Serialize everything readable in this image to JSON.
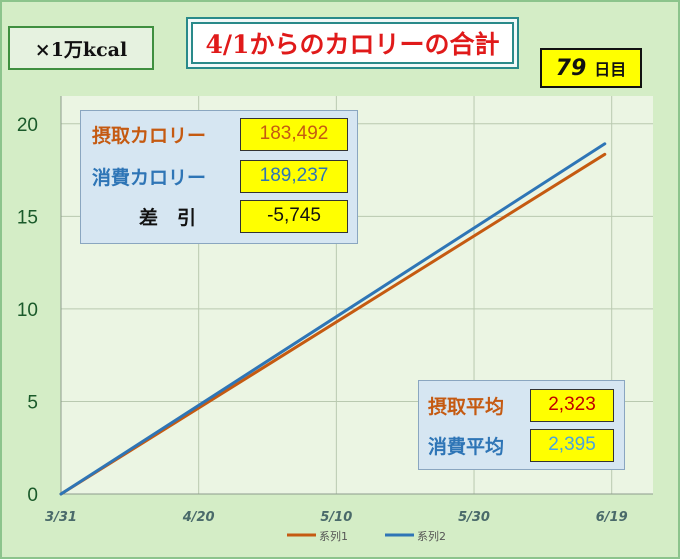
{
  "colors": {
    "intake": "#c55a11",
    "burned": "#2e75b6",
    "diff": "#111111",
    "avg_intake_value": "#c00000",
    "avg_burned_value": "#4aa3df"
  },
  "unit_label": "×1万kcal",
  "title": "4/1からのカロリーの合計",
  "day": {
    "number": "79",
    "unit": "日目"
  },
  "summary": {
    "rows": [
      {
        "label": "摂取カロリー",
        "value": "183,492"
      },
      {
        "label": "消費カロリー",
        "value": "189,237"
      },
      {
        "label": "差　引",
        "value": "-5,745"
      }
    ]
  },
  "averages": {
    "rows": [
      {
        "label": "摂取平均",
        "value": "2,323"
      },
      {
        "label": "消費平均",
        "value": "2,395"
      }
    ]
  },
  "chart_data": {
    "type": "line",
    "x_ticks": [
      "3/31",
      "4/20",
      "5/10",
      "5/30",
      "6/19"
    ],
    "x_tick_days": [
      0,
      20,
      40,
      60,
      80
    ],
    "y_ticks": [
      0,
      5,
      10,
      15,
      20
    ],
    "ylim": [
      0,
      21.5
    ],
    "grid": true,
    "legend_position": "bottom",
    "series": [
      {
        "name": "系列1",
        "color": "#c55a11",
        "x": [
          0,
          79
        ],
        "values": [
          0,
          18.35
        ]
      },
      {
        "name": "系列2",
        "color": "#2e75b6",
        "x": [
          0,
          79
        ],
        "values": [
          0,
          18.92
        ]
      }
    ]
  }
}
